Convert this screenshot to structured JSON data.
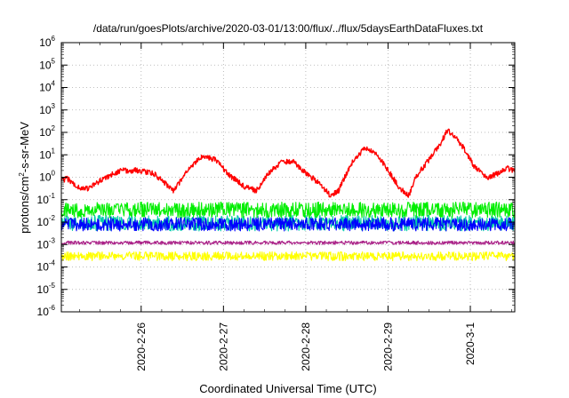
{
  "chart_data": {
    "type": "line",
    "title": "/data/run/goesPlots/archive/2020-03-01/13:00/flux/../flux/5daysEarthDataFluxes.txt",
    "xlabel": "Coordinated Universal Time (UTC)",
    "ylabel": "protons/cm²-s-sr-MeV",
    "yscale": "log",
    "grid": true,
    "ylim": [
      1e-06,
      1000000.0
    ],
    "xlim_days": [
      "2020-02-25 00:40",
      "2020-03-01 13:00"
    ],
    "y_ticks": [
      {
        "base": "10",
        "exp": "-6",
        "value": 1e-06
      },
      {
        "base": "10",
        "exp": "-5",
        "value": 1e-05
      },
      {
        "base": "10",
        "exp": "-4",
        "value": 0.0001
      },
      {
        "base": "10",
        "exp": "-3",
        "value": 0.001
      },
      {
        "base": "10",
        "exp": "-2",
        "value": 0.01
      },
      {
        "base": "10",
        "exp": "-1",
        "value": 0.1
      },
      {
        "base": "10",
        "exp": "0",
        "value": 1
      },
      {
        "base": "10",
        "exp": "1",
        "value": 10.0
      },
      {
        "base": "10",
        "exp": "2",
        "value": 100.0
      },
      {
        "base": "10",
        "exp": "3",
        "value": 1000.0
      },
      {
        "base": "10",
        "exp": "4",
        "value": 10000.0
      },
      {
        "base": "10",
        "exp": "5",
        "value": 100000.0
      },
      {
        "base": "10",
        "exp": "6",
        "value": 1000000.0
      }
    ],
    "x_ticks": [
      {
        "label": "2020-2-26",
        "day": 1.0
      },
      {
        "label": "2020-2-27",
        "day": 2.0
      },
      {
        "label": "2020-2-28",
        "day": 3.0
      },
      {
        "label": "2020-2-29",
        "day": 4.0
      },
      {
        "label": "2020-3-1",
        "day": 5.0
      }
    ],
    "x_range_days": [
      0.03,
      5.54
    ],
    "series": [
      {
        "color": "#ff0000",
        "noise": 0.12,
        "anchors": [
          [
            0.03,
            0.7
          ],
          [
            0.1,
            0.9
          ],
          [
            0.2,
            0.4
          ],
          [
            0.35,
            0.3
          ],
          [
            0.55,
            0.9
          ],
          [
            0.75,
            2.0
          ],
          [
            0.95,
            2.0
          ],
          [
            1.15,
            1.5
          ],
          [
            1.4,
            0.25
          ],
          [
            1.6,
            3.0
          ],
          [
            1.75,
            9.0
          ],
          [
            1.9,
            6.0
          ],
          [
            2.1,
            1.0
          ],
          [
            2.25,
            0.4
          ],
          [
            2.4,
            0.25
          ],
          [
            2.55,
            1.5
          ],
          [
            2.7,
            4.5
          ],
          [
            2.85,
            5.0
          ],
          [
            3.0,
            1.5
          ],
          [
            3.15,
            0.6
          ],
          [
            3.3,
            0.15
          ],
          [
            3.4,
            0.25
          ],
          [
            3.55,
            4.0
          ],
          [
            3.72,
            20.0
          ],
          [
            3.85,
            12.0
          ],
          [
            4.0,
            2.0
          ],
          [
            4.15,
            0.3
          ],
          [
            4.25,
            0.15
          ],
          [
            4.35,
            1.2
          ],
          [
            4.48,
            5.0
          ],
          [
            4.62,
            25.0
          ],
          [
            4.72,
            120.0
          ],
          [
            4.82,
            60.0
          ],
          [
            4.92,
            20.0
          ],
          [
            5.05,
            3.0
          ],
          [
            5.2,
            1.0
          ],
          [
            5.35,
            1.5
          ],
          [
            5.45,
            2.5
          ],
          [
            5.54,
            1.8
          ]
        ]
      },
      {
        "color": "#00ee00",
        "base": 0.035,
        "noise": 0.35,
        "seed": 11
      },
      {
        "color": "#00ccaa",
        "base": 0.009,
        "noise": 0.35,
        "seed": 23
      },
      {
        "color": "#0000ff",
        "base": 0.008,
        "noise": 0.3,
        "seed": 37
      },
      {
        "color": "#ffff00",
        "base": 0.0003,
        "noise": 0.2,
        "seed": 41
      },
      {
        "color": "#aa2288",
        "base": 0.0012,
        "noise": 0.08,
        "seed": 53
      }
    ]
  }
}
